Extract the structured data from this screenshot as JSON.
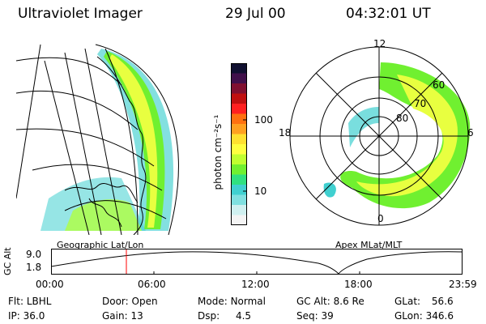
{
  "header": {
    "title": "Ultraviolet Imager",
    "date": "29 Jul 00",
    "time": "04:32:01 UT"
  },
  "colorbar": {
    "unit_label": "photon cm⁻²s⁻¹",
    "ticks": [
      "100",
      "10"
    ],
    "colors": [
      "#101030",
      "#40104a",
      "#801030",
      "#c01010",
      "#ff2020",
      "#ff7010",
      "#ffa020",
      "#ffe030",
      "#ffff40",
      "#c0ff30",
      "#70f030",
      "#30e080",
      "#40d0d0",
      "#80e0e0",
      "#d0f0f0",
      "#f4f4f4"
    ]
  },
  "geo_panel": {
    "caption": "Geographic Lat/Lon"
  },
  "polar_panel": {
    "caption": "Apex MLat/MLT",
    "mlt_labels": {
      "top": "12",
      "left": "18",
      "right": "6",
      "bottom": "0"
    },
    "lat_labels": [
      "60",
      "70",
      "80"
    ]
  },
  "altitude_plot": {
    "ylabel": "GC Alt",
    "yticks": [
      "9.0",
      "1.8"
    ],
    "xticks": [
      "00:00",
      "06:00",
      "12:00",
      "18:00",
      "23:59"
    ],
    "current_time_marker": "04:32"
  },
  "info": {
    "flt": {
      "label": "Flt:",
      "value": "LBHL"
    },
    "ip": {
      "label": "IP:",
      "value": "36.0"
    },
    "door": {
      "label": "Door:",
      "value": "Open"
    },
    "gain": {
      "label": "Gain:",
      "value": "13"
    },
    "mode": {
      "label": "Mode:",
      "value": "Normal"
    },
    "dsp": {
      "label": "Dsp:",
      "value": "4.5"
    },
    "gcalt": {
      "label": "GC Alt:",
      "value": "8.6 Re"
    },
    "seq": {
      "label": "Seq:",
      "value": "39"
    },
    "glat": {
      "label": "GLat:",
      "value": "56.6"
    },
    "glon": {
      "label": "GLon:",
      "value": "346.6"
    }
  }
}
